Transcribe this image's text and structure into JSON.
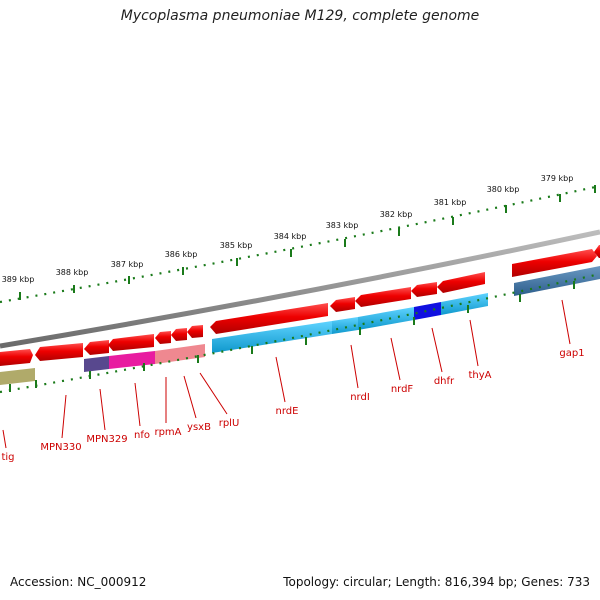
{
  "title": "Mycoplasma pneumoniae M129, complete genome",
  "footer": {
    "accession_label": "Accession:",
    "accession": "NC_000912",
    "topology_label": "Topology:",
    "topology": "circular",
    "length_label": "Length:",
    "length": "816,394 bp",
    "genes_label": "Genes:",
    "genes": "733"
  },
  "scale_labels": [
    "379 kbp",
    "380 kbp",
    "381 kbp",
    "382 kbp",
    "383 kbp",
    "384 kbp",
    "385 kbp",
    "386 kbp",
    "387 kbp",
    "388 kbp",
    "389 kbp"
  ],
  "gene_labels": [
    "tig",
    "MPN330",
    "MPN329",
    "nfo",
    "rpmA",
    "ysxB",
    "rplU",
    "nrdE",
    "nrdI",
    "nrdF",
    "dhfr",
    "thyA",
    "gap1"
  ],
  "colors": {
    "backbone": "#8a8a8a",
    "forward_cds": "#ee0000",
    "label_red": "#cc0000",
    "tick_green": "#1a7a1a",
    "cyan": "#19b7ea",
    "blue": "#1010e0",
    "steelblue": "#3f78a8",
    "magenta": "#e81ca0",
    "pink": "#ef8890",
    "purple": "#58488e",
    "olive": "#b0aa6a"
  }
}
